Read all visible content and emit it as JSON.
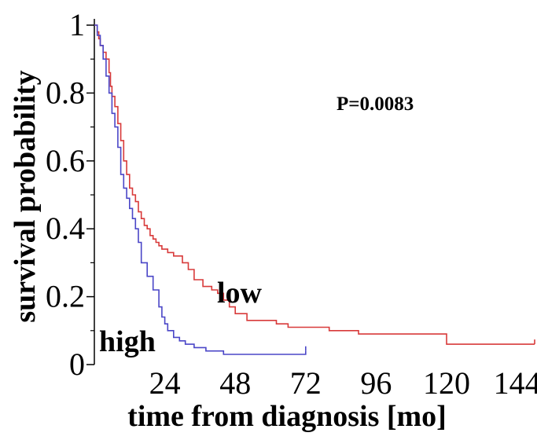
{
  "chart_data": {
    "type": "line",
    "title": "",
    "xlabel": "time from diagnosis [mo]",
    "ylabel": "survival probability",
    "xlim": [
      0,
      150
    ],
    "ylim": [
      0,
      1
    ],
    "x_ticks": [
      24,
      48,
      72,
      96,
      120,
      144
    ],
    "y_ticks": [
      0,
      0.2,
      0.4,
      0.6,
      0.8,
      1
    ],
    "y_tick_labels": [
      "0",
      "0.2",
      "0.4",
      "0.6",
      "0.8",
      "1"
    ],
    "annotation": "P=0.0083",
    "grid": false,
    "series": [
      {
        "name": "low",
        "color": "#d83a3a",
        "x": [
          0,
          1,
          1.5,
          2,
          3,
          4,
          5,
          5.5,
          6,
          7,
          8,
          9,
          10,
          11,
          12,
          13,
          14,
          15,
          16,
          17,
          18,
          19,
          20,
          21,
          22,
          23,
          25,
          27,
          30,
          32,
          34,
          37,
          40,
          42,
          44,
          46,
          48,
          52,
          56,
          62,
          66,
          72,
          80,
          90,
          100,
          120,
          130,
          150
        ],
        "y": [
          1,
          0.98,
          0.96,
          0.94,
          0.92,
          0.9,
          0.86,
          0.82,
          0.79,
          0.76,
          0.71,
          0.66,
          0.6,
          0.56,
          0.52,
          0.5,
          0.48,
          0.45,
          0.43,
          0.41,
          0.4,
          0.38,
          0.37,
          0.36,
          0.35,
          0.34,
          0.33,
          0.32,
          0.3,
          0.28,
          0.25,
          0.23,
          0.22,
          0.21,
          0.19,
          0.17,
          0.15,
          0.13,
          0.13,
          0.12,
          0.11,
          0.11,
          0.1,
          0.09,
          0.09,
          0.06,
          0.06,
          0.06
        ]
      },
      {
        "name": "high",
        "color": "#4a46c7",
        "x": [
          0,
          1,
          2,
          3,
          4,
          5,
          6,
          7,
          8,
          9,
          10,
          11,
          12,
          13,
          14,
          15,
          16,
          18,
          20,
          22,
          23,
          24,
          25,
          27,
          29,
          31,
          34,
          38,
          42,
          44,
          48,
          56,
          64,
          72
        ],
        "y": [
          1,
          0.97,
          0.94,
          0.9,
          0.85,
          0.8,
          0.74,
          0.7,
          0.64,
          0.56,
          0.52,
          0.49,
          0.46,
          0.43,
          0.4,
          0.36,
          0.3,
          0.26,
          0.22,
          0.17,
          0.14,
          0.12,
          0.1,
          0.08,
          0.07,
          0.06,
          0.05,
          0.04,
          0.04,
          0.03,
          0.03,
          0.03,
          0.03,
          0.04
        ]
      }
    ]
  }
}
